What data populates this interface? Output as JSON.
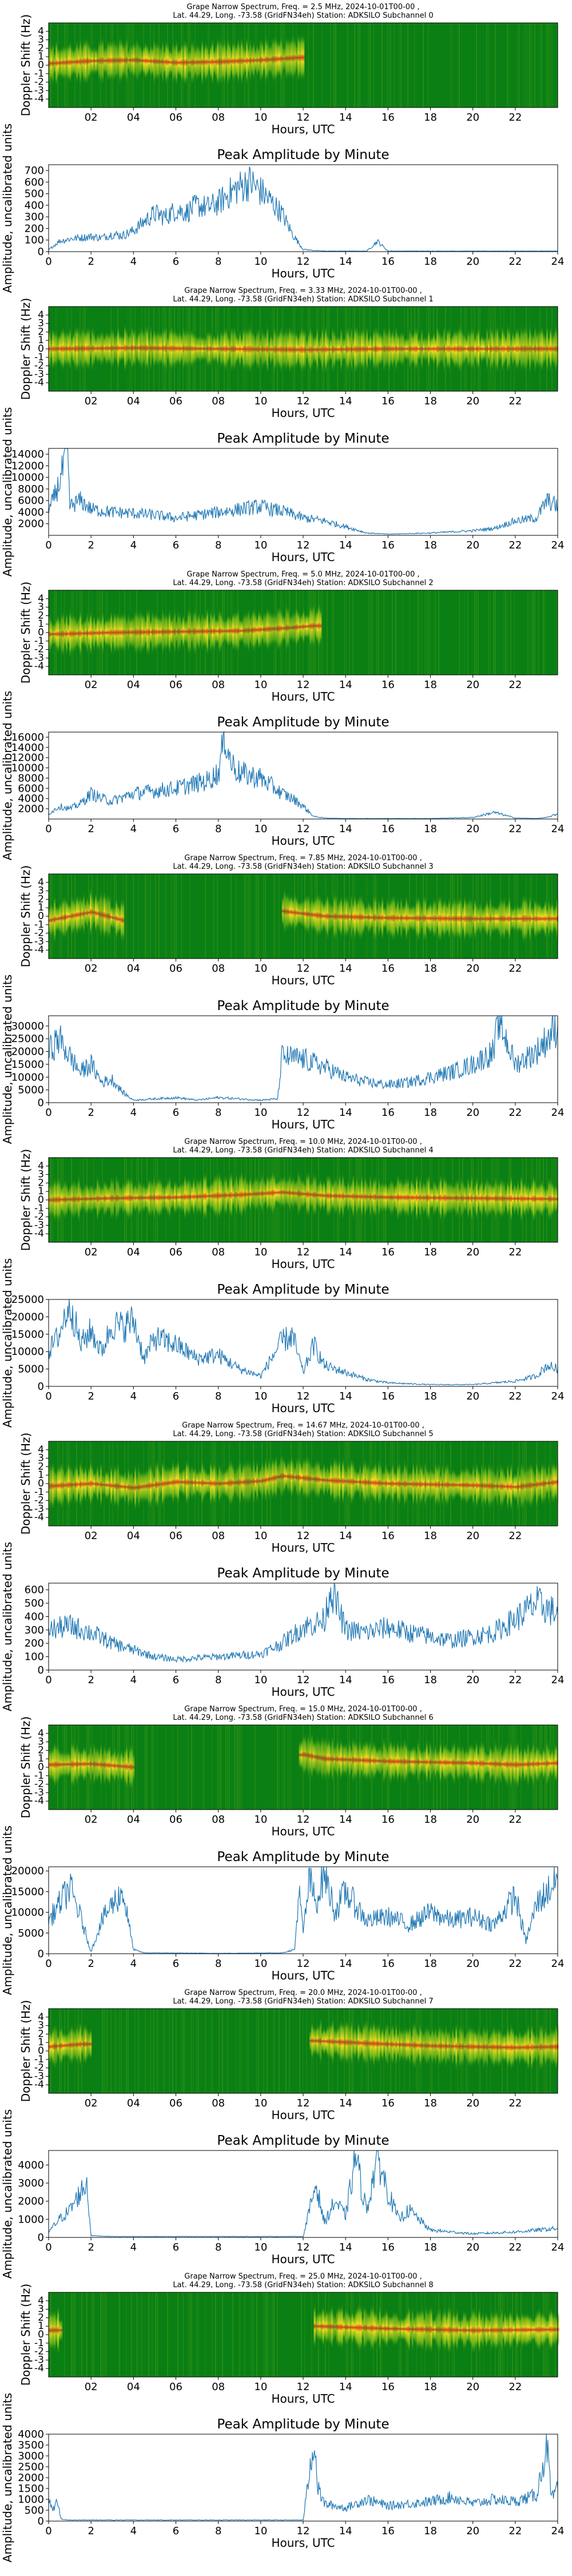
{
  "colors": {
    "spectrum_background": "#0a7f14",
    "spectrum_mid": "#7fc01a",
    "spectrum_bright": "#f2e020",
    "spectrum_peak": "#e8401a",
    "amplitude_line": "#1f77b4"
  },
  "common": {
    "peak_title": "Peak Amplitude by Minute",
    "xlabel": "Hours, UTC",
    "spectrum_ylabel": "Doppler Shift (Hz)",
    "amplitude_ylabel": "Amplitude, uncalibrated units",
    "spectrum_xticks": [
      "02",
      "04",
      "06",
      "08",
      "10",
      "12",
      "14",
      "16",
      "18",
      "20",
      "22"
    ],
    "amplitude_xticks": [
      "0",
      "2",
      "4",
      "6",
      "8",
      "10",
      "12",
      "14",
      "16",
      "18",
      "20",
      "22",
      "24"
    ],
    "spectrum_yticks": [
      "4",
      "3",
      "2",
      "1",
      "0",
      "-1",
      "-2",
      "-3",
      "-4"
    ]
  },
  "chart_data": [
    {
      "type": "heatmap",
      "title_line1": "Grape Narrow Spectrum, Freq. = 2.5 MHz, 2024-10-01T00-00 ,",
      "title_line2": "Lat.  44.29, Long. -73.58 (GridFN34eh) Station: ADKSILO Subchannel 0",
      "ylabel": "Doppler Shift (Hz)",
      "xlabel": "Hours, UTC",
      "xlim": [
        0,
        24
      ],
      "ylim": [
        -5,
        5
      ],
      "signal_windows": [
        [
          0,
          12.0
        ]
      ],
      "peak_doppler_trace": [
        [
          0,
          0.2
        ],
        [
          2,
          0.5
        ],
        [
          4,
          0.6
        ],
        [
          6,
          0.3
        ],
        [
          8,
          0.4
        ],
        [
          10,
          0.6
        ],
        [
          11.8,
          0.9
        ]
      ]
    },
    {
      "type": "line",
      "title": "Peak Amplitude by Minute",
      "ylabel": "Amplitude, uncalibrated units",
      "xlabel": "Hours, UTC",
      "xlim": [
        0,
        24
      ],
      "ylim": [
        0,
        750
      ],
      "yticks": [
        0,
        100,
        200,
        300,
        400,
        500,
        600,
        700
      ],
      "x": [
        0,
        0.5,
        1,
        1.5,
        2,
        2.5,
        3,
        3.5,
        4,
        4.5,
        5,
        5.5,
        6,
        6.5,
        7,
        7.5,
        8,
        8.5,
        9,
        9.5,
        10,
        10.5,
        11,
        11.5,
        12,
        12.5,
        13,
        14,
        15,
        15.5,
        16,
        17,
        18,
        19,
        20,
        21,
        22,
        23,
        24
      ],
      "values": [
        15,
        90,
        110,
        120,
        130,
        120,
        150,
        140,
        180,
        260,
        330,
        300,
        360,
        340,
        400,
        380,
        420,
        500,
        560,
        600,
        520,
        430,
        330,
        150,
        20,
        10,
        5,
        5,
        5,
        90,
        5,
        5,
        5,
        5,
        5,
        5,
        5,
        5,
        5
      ]
    },
    {
      "type": "heatmap",
      "title_line1": "Grape Narrow Spectrum, Freq. = 3.33 MHz, 2024-10-01T00-00 ,",
      "title_line2": "Lat.  44.29, Long. -73.58 (GridFN34eh) Station: ADKSILO Subchannel 1",
      "ylabel": "Doppler Shift (Hz)",
      "xlabel": "Hours, UTC",
      "xlim": [
        0,
        24
      ],
      "ylim": [
        -5,
        5
      ],
      "signal_windows": [
        [
          0,
          24
        ]
      ],
      "peak_doppler_trace": [
        [
          0,
          0.0
        ],
        [
          4,
          0.1
        ],
        [
          8,
          0.0
        ],
        [
          12,
          -0.1
        ],
        [
          16,
          0.0
        ],
        [
          20,
          0.0
        ],
        [
          24,
          0.0
        ]
      ]
    },
    {
      "type": "line",
      "title": "Peak Amplitude by Minute",
      "ylabel": "Amplitude, uncalibrated units",
      "xlabel": "Hours, UTC",
      "xlim": [
        0,
        24
      ],
      "ylim": [
        0,
        15000
      ],
      "yticks": [
        2000,
        4000,
        6000,
        8000,
        10000,
        12000,
        14000
      ],
      "x": [
        0,
        0.5,
        0.9,
        1,
        1.5,
        2,
        3,
        4,
        5,
        6,
        7,
        8,
        9,
        10,
        10.5,
        11,
        12,
        13,
        14,
        15,
        16,
        17,
        18,
        19,
        20,
        21,
        22,
        23,
        23.5,
        24
      ],
      "values": [
        4000,
        9000,
        14500,
        5000,
        6000,
        4500,
        4000,
        3800,
        3500,
        3000,
        3500,
        4000,
        4500,
        5000,
        4500,
        4200,
        3000,
        2500,
        1500,
        400,
        200,
        300,
        400,
        600,
        800,
        1200,
        2500,
        3000,
        6000,
        5000
      ]
    },
    {
      "type": "heatmap",
      "title_line1": "Grape Narrow Spectrum, Freq. = 5.0 MHz, 2024-10-01T00-00 ,",
      "title_line2": "Lat.  44.29, Long. -73.58 (GridFN34eh) Station: ADKSILO Subchannel 2",
      "ylabel": "Doppler Shift (Hz)",
      "xlabel": "Hours, UTC",
      "xlim": [
        0,
        24
      ],
      "ylim": [
        -5,
        5
      ],
      "signal_windows": [
        [
          0,
          12.8
        ]
      ],
      "peak_doppler_trace": [
        [
          0,
          -0.2
        ],
        [
          3,
          0.0
        ],
        [
          6,
          0.1
        ],
        [
          9,
          0.2
        ],
        [
          11,
          0.5
        ],
        [
          12.5,
          0.8
        ]
      ]
    },
    {
      "type": "line",
      "title": "Peak Amplitude by Minute",
      "ylabel": "Amplitude, uncalibrated units",
      "xlabel": "Hours, UTC",
      "xlim": [
        0,
        24
      ],
      "ylim": [
        0,
        17000
      ],
      "yticks": [
        2000,
        4000,
        6000,
        8000,
        10000,
        12000,
        14000,
        16000
      ],
      "x": [
        0,
        0.5,
        1,
        1.5,
        2,
        2.5,
        3,
        4,
        5,
        6,
        7,
        7.5,
        8,
        8.3,
        8.6,
        9,
        10,
        11,
        11.5,
        12,
        12.5,
        13,
        14,
        16,
        18,
        20,
        21,
        22,
        23,
        23.5,
        24
      ],
      "values": [
        1000,
        2500,
        2000,
        3000,
        5000,
        4000,
        3500,
        5000,
        5500,
        6000,
        7000,
        7500,
        9000,
        16500,
        11000,
        9000,
        8000,
        5000,
        4000,
        2500,
        500,
        200,
        100,
        100,
        100,
        300,
        1300,
        200,
        100,
        300,
        1000
      ]
    },
    {
      "type": "heatmap",
      "title_line1": "Grape Narrow Spectrum, Freq. = 7.85 MHz, 2024-10-01T00-00 ,",
      "title_line2": "Lat.  44.29, Long. -73.58 (GridFN34eh) Station: ADKSILO Subchannel 3",
      "ylabel": "Doppler Shift (Hz)",
      "xlabel": "Hours, UTC",
      "xlim": [
        0,
        24
      ],
      "ylim": [
        -5,
        5
      ],
      "signal_windows": [
        [
          0,
          3.5
        ],
        [
          11,
          24
        ]
      ],
      "peak_doppler_trace": [
        [
          0,
          -0.5
        ],
        [
          2,
          0.5
        ],
        [
          3.5,
          -0.5
        ],
        [
          11,
          0.6
        ],
        [
          13,
          0.0
        ],
        [
          16,
          -0.2
        ],
        [
          20,
          -0.3
        ],
        [
          24,
          -0.3
        ]
      ]
    },
    {
      "type": "line",
      "title": "Peak Amplitude by Minute",
      "ylabel": "Amplitude, uncalibrated units",
      "xlabel": "Hours, UTC",
      "xlim": [
        0,
        24
      ],
      "ylim": [
        0,
        34000
      ],
      "yticks": [
        0,
        5000,
        10000,
        15000,
        20000,
        25000,
        30000
      ],
      "x": [
        0,
        0.5,
        1,
        1.5,
        2,
        2.5,
        3,
        3.5,
        4,
        5,
        6,
        7,
        8,
        9,
        10,
        10.8,
        11,
        12,
        13,
        14,
        15,
        16,
        17,
        18,
        19,
        20,
        21,
        21.2,
        22,
        23,
        23.5,
        24
      ],
      "values": [
        20000,
        25000,
        18000,
        12000,
        15000,
        8000,
        9000,
        4000,
        1000,
        1500,
        2000,
        1000,
        2000,
        1500,
        1000,
        1500,
        18000,
        17000,
        14000,
        10000,
        8000,
        7000,
        8000,
        10000,
        12000,
        15000,
        20000,
        33000,
        15000,
        20000,
        25000,
        30000
      ]
    },
    {
      "type": "heatmap",
      "title_line1": "Grape Narrow Spectrum, Freq. = 10.0 MHz, 2024-10-01T00-00 ,",
      "title_line2": "Lat.  44.29, Long. -73.58 (GridFN34eh) Station: ADKSILO Subchannel 4",
      "ylabel": "Doppler Shift (Hz)",
      "xlabel": "Hours, UTC",
      "xlim": [
        0,
        24
      ],
      "ylim": [
        -5,
        5
      ],
      "signal_windows": [
        [
          0,
          24
        ]
      ],
      "peak_doppler_trace": [
        [
          0,
          0.0
        ],
        [
          3,
          0.2
        ],
        [
          6,
          0.3
        ],
        [
          9,
          0.6
        ],
        [
          11,
          0.9
        ],
        [
          13,
          0.5
        ],
        [
          16,
          0.3
        ],
        [
          20,
          0.2
        ],
        [
          24,
          0.1
        ]
      ]
    },
    {
      "type": "line",
      "title": "Peak Amplitude by Minute",
      "ylabel": "Amplitude, uncalibrated units",
      "xlabel": "Hours, UTC",
      "xlim": [
        0,
        24
      ],
      "ylim": [
        0,
        25000
      ],
      "yticks": [
        0,
        5000,
        10000,
        15000,
        20000,
        25000
      ],
      "x": [
        0,
        0.5,
        1,
        1.5,
        2,
        2.5,
        3,
        3.5,
        4,
        4.5,
        5,
        6,
        7,
        8,
        9,
        10,
        11,
        11.5,
        12,
        12.5,
        13,
        14,
        15,
        16,
        18,
        20,
        22,
        23,
        23.5,
        24
      ],
      "values": [
        10000,
        15000,
        24500,
        12000,
        16000,
        10000,
        18000,
        17000,
        19000,
        8000,
        14000,
        12000,
        8000,
        9000,
        5000,
        3000,
        13000,
        14500,
        4000,
        12000,
        6000,
        4000,
        2000,
        1000,
        500,
        500,
        1500,
        3000,
        6000,
        5000
      ]
    },
    {
      "type": "heatmap",
      "title_line1": "Grape Narrow Spectrum, Freq. = 14.67 MHz, 2024-10-01T00-00 ,",
      "title_line2": "Lat.  44.29, Long. -73.58 (GridFN34eh) Station: ADKSILO Subchannel 5",
      "ylabel": "Doppler Shift (Hz)",
      "xlabel": "Hours, UTC",
      "xlim": [
        0,
        24
      ],
      "ylim": [
        -5,
        5
      ],
      "signal_windows": [
        [
          0,
          24
        ]
      ],
      "peak_doppler_trace": [
        [
          0,
          -0.3
        ],
        [
          2,
          0.0
        ],
        [
          4,
          -0.5
        ],
        [
          6,
          0.2
        ],
        [
          8,
          0.0
        ],
        [
          10,
          0.3
        ],
        [
          11,
          0.9
        ],
        [
          13,
          0.4
        ],
        [
          16,
          0.0
        ],
        [
          20,
          -0.2
        ],
        [
          22,
          -0.4
        ],
        [
          24,
          0.2
        ]
      ]
    },
    {
      "type": "line",
      "title": "Peak Amplitude by Minute",
      "ylabel": "Amplitude, uncalibrated units",
      "xlabel": "Hours, UTC",
      "xlim": [
        0,
        24
      ],
      "ylim": [
        0,
        650
      ],
      "yticks": [
        0,
        100,
        200,
        300,
        400,
        500,
        600
      ],
      "x": [
        0,
        1,
        2,
        3,
        4,
        5,
        6,
        7,
        8,
        9,
        10,
        11,
        12,
        13,
        13.3,
        14,
        15,
        16,
        17,
        18,
        19,
        20,
        21,
        22,
        23,
        24
      ],
      "values": [
        300,
        330,
        280,
        200,
        150,
        100,
        80,
        90,
        100,
        110,
        120,
        200,
        320,
        370,
        620,
        300,
        280,
        320,
        280,
        250,
        220,
        250,
        280,
        380,
        500,
        420
      ]
    },
    {
      "type": "heatmap",
      "title_line1": "Grape Narrow Spectrum, Freq. = 15.0 MHz, 2024-10-01T00-00 ,",
      "title_line2": "Lat.  44.29, Long. -73.58 (GridFN34eh) Station: ADKSILO Subchannel 6",
      "ylabel": "Doppler Shift (Hz)",
      "xlabel": "Hours, UTC",
      "xlim": [
        0,
        24
      ],
      "ylim": [
        -5,
        5
      ],
      "signal_windows": [
        [
          0,
          4.0
        ],
        [
          11.8,
          24
        ]
      ],
      "peak_doppler_trace": [
        [
          0,
          0.3
        ],
        [
          2,
          0.4
        ],
        [
          4,
          0.0
        ],
        [
          12,
          1.5
        ],
        [
          13,
          1.0
        ],
        [
          16,
          0.7
        ],
        [
          20,
          0.5
        ],
        [
          22,
          0.3
        ],
        [
          24,
          0.5
        ]
      ]
    },
    {
      "type": "line",
      "title": "Peak Amplitude by Minute",
      "ylabel": "Amplitude, uncalibrated units",
      "xlabel": "Hours, UTC",
      "xlim": [
        0,
        24
      ],
      "ylim": [
        0,
        21000
      ],
      "yticks": [
        0,
        5000,
        10000,
        15000,
        20000
      ],
      "x": [
        0,
        0.5,
        1,
        1.5,
        2,
        2.5,
        3,
        3.5,
        4,
        4.5,
        5,
        8,
        11,
        11.6,
        11.8,
        12,
        12.3,
        12.6,
        13,
        13.5,
        14,
        15,
        16,
        17,
        18,
        19,
        20,
        21,
        22,
        22.5,
        23,
        24
      ],
      "values": [
        8000,
        12000,
        16000,
        9000,
        500,
        8000,
        12000,
        15000,
        1000,
        200,
        200,
        100,
        200,
        1000,
        15000,
        5000,
        18000,
        12000,
        20000,
        10000,
        15000,
        8000,
        9000,
        7000,
        10000,
        8000,
        9000,
        7000,
        14000,
        3000,
        12000,
        18000
      ]
    },
    {
      "type": "heatmap",
      "title_line1": "Grape Narrow Spectrum, Freq. = 20.0 MHz, 2024-10-01T00-00 ,",
      "title_line2": "Lat.  44.29, Long. -73.58 (GridFN34eh) Station: ADKSILO Subchannel 7",
      "ylabel": "Doppler Shift (Hz)",
      "xlabel": "Hours, UTC",
      "xlim": [
        0,
        24
      ],
      "ylim": [
        -5,
        5
      ],
      "signal_windows": [
        [
          0,
          2.0
        ],
        [
          12.3,
          24
        ]
      ],
      "peak_doppler_trace": [
        [
          0,
          0.5
        ],
        [
          1.5,
          0.8
        ],
        [
          12.5,
          1.2
        ],
        [
          15,
          0.9
        ],
        [
          18,
          0.6
        ],
        [
          22,
          0.4
        ],
        [
          24,
          0.5
        ]
      ]
    },
    {
      "type": "line",
      "title": "Peak Amplitude by Minute",
      "ylabel": "Amplitude, uncalibrated units",
      "xlabel": "Hours, UTC",
      "xlim": [
        0,
        24
      ],
      "ylim": [
        0,
        4800
      ],
      "yticks": [
        0,
        1000,
        2000,
        3000,
        4000
      ],
      "x": [
        0,
        0.5,
        1,
        1.5,
        1.8,
        2,
        3,
        6,
        9,
        12,
        12.3,
        12.6,
        13,
        13.5,
        14,
        14.5,
        14.7,
        15,
        15.5,
        16,
        16.5,
        17,
        18,
        20,
        22,
        24
      ],
      "values": [
        300,
        1000,
        1500,
        2500,
        3000,
        100,
        50,
        50,
        50,
        50,
        1500,
        3000,
        800,
        2000,
        1200,
        4600,
        3000,
        1500,
        4500,
        2500,
        1000,
        1500,
        400,
        200,
        300,
        500
      ]
    },
    {
      "type": "heatmap",
      "title_line1": "Grape Narrow Spectrum, Freq. = 25.0 MHz, 2024-10-01T00-00 ,",
      "title_line2": "Lat.  44.29, Long. -73.58 (GridFN34eh) Station: ADKSILO Subchannel 8",
      "ylabel": "Doppler Shift (Hz)",
      "xlabel": "Hours, UTC",
      "xlim": [
        0,
        24
      ],
      "ylim": [
        -5,
        5
      ],
      "signal_windows": [
        [
          0,
          0.6
        ],
        [
          12.5,
          24
        ]
      ],
      "peak_doppler_trace": [
        [
          0,
          0.5
        ],
        [
          12.5,
          1.0
        ],
        [
          16,
          0.7
        ],
        [
          20,
          0.5
        ],
        [
          24,
          0.6
        ]
      ]
    },
    {
      "type": "line",
      "title": "Peak Amplitude by Minute",
      "ylabel": "Amplitude, uncalibrated units",
      "xlabel": "Hours, UTC",
      "xlim": [
        0,
        24
      ],
      "ylim": [
        0,
        4000
      ],
      "yticks": [
        0,
        500,
        1000,
        1500,
        2000,
        2500,
        3000,
        3500,
        4000
      ],
      "x": [
        0,
        0.2,
        0.4,
        0.6,
        1,
        3,
        6,
        9,
        12,
        12.5,
        12.7,
        13,
        14,
        15,
        16,
        17,
        18,
        19,
        20,
        21,
        22,
        23,
        23.5,
        23.7,
        24
      ],
      "values": [
        1200,
        500,
        900,
        100,
        50,
        50,
        50,
        50,
        50,
        3800,
        1500,
        800,
        600,
        1000,
        700,
        800,
        900,
        1100,
        800,
        1000,
        900,
        1200,
        3500,
        1000,
        1500
      ]
    }
  ]
}
